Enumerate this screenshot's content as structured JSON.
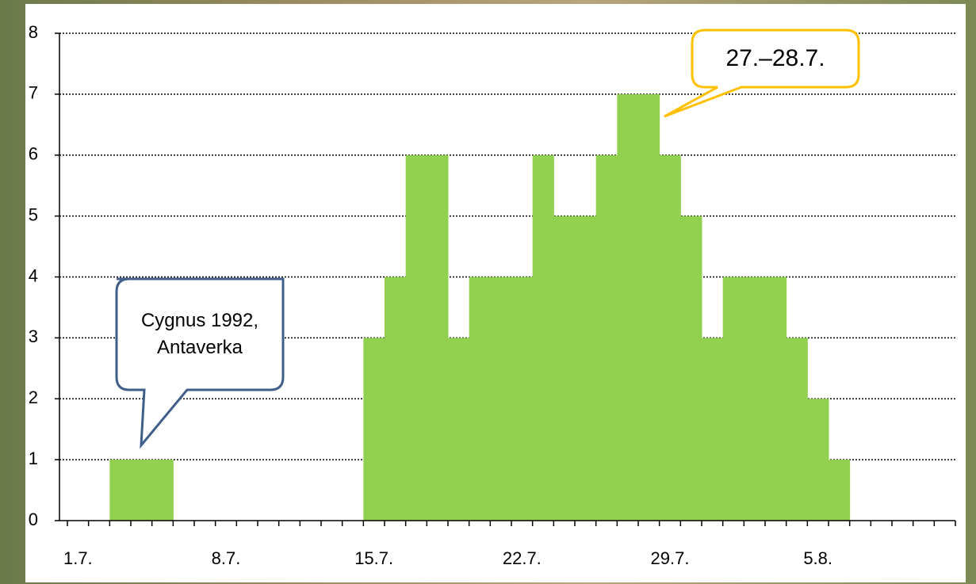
{
  "chart_data": {
    "type": "bar",
    "categories": [
      "1.7.",
      null,
      null,
      null,
      null,
      null,
      null,
      "8.7.",
      null,
      null,
      null,
      null,
      null,
      null,
      "15.7.",
      null,
      null,
      null,
      null,
      null,
      null,
      "22.7.",
      null,
      null,
      null,
      null,
      null,
      null,
      "29.7.",
      null,
      null,
      null,
      null,
      null,
      null,
      "5.8.",
      null,
      null,
      null,
      null,
      null,
      null
    ],
    "values": [
      0,
      0,
      1,
      1,
      1,
      0,
      0,
      0,
      0,
      0,
      0,
      0,
      0,
      0,
      3,
      4,
      6,
      6,
      3,
      4,
      4,
      4,
      6,
      5,
      5,
      6,
      7,
      7,
      6,
      5,
      3,
      4,
      4,
      4,
      3,
      2,
      1,
      0,
      0,
      0,
      0,
      0
    ],
    "color": "#92d050",
    "ylim": [
      0,
      8
    ],
    "yticks": [
      0,
      1,
      2,
      3,
      4,
      5,
      6,
      7,
      8
    ],
    "grid": true,
    "annotations": [
      "Cygnus 1992, Antaverka",
      "27.–28.7."
    ]
  }
}
